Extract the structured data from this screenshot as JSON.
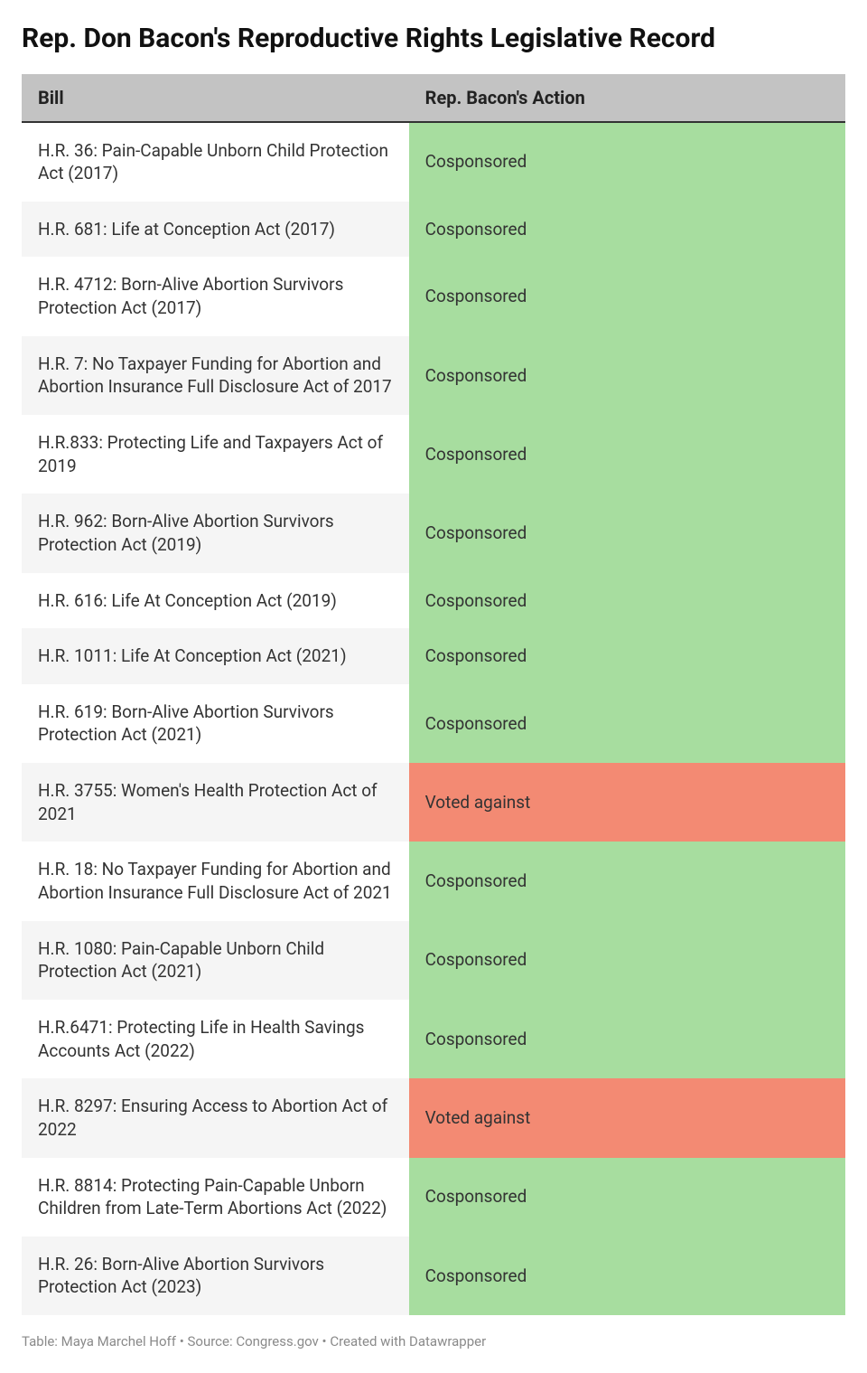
{
  "title": "Rep. Don Bacon's Reproductive Rights Legislative Record",
  "columns": [
    "Bill",
    "Rep. Bacon's Action"
  ],
  "action_colors": {
    "Cosponsored": "#a7dd9f",
    "Voted against": "#f38a73"
  },
  "rows": [
    {
      "bill": "H.R. 36: Pain-Capable Unborn Child Protection Act (2017)",
      "action": "Cosponsored"
    },
    {
      "bill": "H.R. 681: Life at Conception Act (2017)",
      "action": "Cosponsored"
    },
    {
      "bill": "H.R. 4712: Born-Alive Abortion Survivors Protection Act (2017)",
      "action": "Cosponsored"
    },
    {
      "bill": "H.R. 7: No Taxpayer Funding for Abortion and Abortion Insurance Full Disclosure Act of 2017",
      "action": "Cosponsored"
    },
    {
      "bill": "H.R.833: Protecting Life and Taxpayers Act of 2019",
      "action": "Cosponsored"
    },
    {
      "bill": "H.R. 962: Born-Alive Abortion Survivors Protection Act (2019)",
      "action": "Cosponsored"
    },
    {
      "bill": "H.R. 616: Life At Conception Act (2019)",
      "action": "Cosponsored"
    },
    {
      "bill": "H.R. 1011: Life At Conception Act (2021)",
      "action": "Cosponsored"
    },
    {
      "bill": "H.R. 619: Born-Alive Abortion Survivors Protection Act (2021)",
      "action": "Cosponsored"
    },
    {
      "bill": "H.R. 3755: Women's Health Protection Act of 2021",
      "action": "Voted against"
    },
    {
      "bill": "H.R. 18: No Taxpayer Funding for Abortion and Abortion Insurance Full Disclosure Act of 2021",
      "action": "Cosponsored"
    },
    {
      "bill": "H.R. 1080: Pain-Capable Unborn Child Protection Act (2021)",
      "action": "Cosponsored"
    },
    {
      "bill": "H.R.6471: Protecting Life in Health Savings Accounts Act (2022)",
      "action": "Cosponsored"
    },
    {
      "bill": "H.R. 8297: Ensuring Access to Abortion Act of 2022",
      "action": "Voted against"
    },
    {
      "bill": "H.R. 8814: Protecting Pain-Capable Unborn Children from Late-Term Abortions Act (2022)",
      "action": "Cosponsored"
    },
    {
      "bill": "H.R. 26: Born-Alive Abortion Survivors Protection Act (2023)",
      "action": "Cosponsored"
    }
  ],
  "footer": "Table: Maya Marchel Hoff • Source: Congress.gov • Created with Datawrapper"
}
